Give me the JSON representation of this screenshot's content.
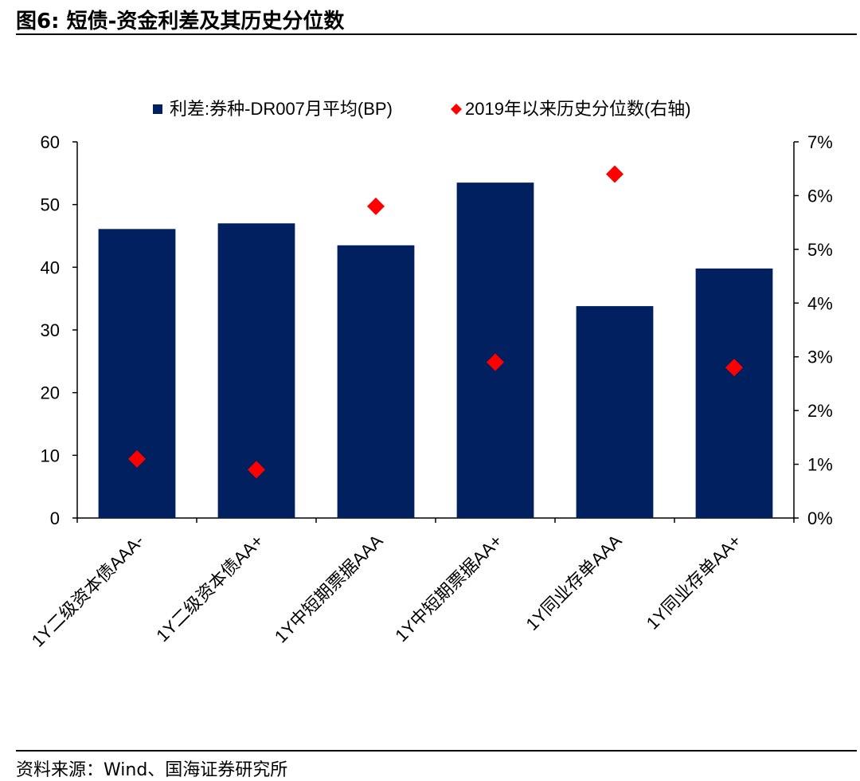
{
  "header": {
    "figure_label": "图6:",
    "title": "短债-资金利差及其历史分位数"
  },
  "footer": {
    "source": "资料来源：Wind、国海证券研究所"
  },
  "chart_data": {
    "type": "bar",
    "categories": [
      "1Y二级资本债AAA-",
      "1Y二级资本债AA+",
      "1Y中短期票据AAA",
      "1Y中短期票据AA+",
      "1Y同业存单AAA",
      "1Y同业存单AA+"
    ],
    "series": [
      {
        "name": "利差:券种-DR007月平均(BP)",
        "type": "bar",
        "axis": "left",
        "color": "#002060",
        "values": [
          46.1,
          47.0,
          43.5,
          53.5,
          33.8,
          39.8
        ]
      },
      {
        "name": "2019年以来历史分位数(右轴)",
        "type": "scatter",
        "marker": "diamond",
        "axis": "right",
        "color": "#ff0000",
        "values": [
          0.011,
          0.009,
          0.058,
          0.029,
          0.064,
          0.028
        ]
      }
    ],
    "yaxis_left": {
      "min": 0,
      "max": 60,
      "ticks": [
        0,
        10,
        20,
        30,
        40,
        50,
        60
      ],
      "tick_labels": [
        "0",
        "10",
        "20",
        "30",
        "40",
        "50",
        "60"
      ]
    },
    "yaxis_right": {
      "min": 0,
      "max": 0.07,
      "ticks": [
        0,
        0.01,
        0.02,
        0.03,
        0.04,
        0.05,
        0.06,
        0.07
      ],
      "tick_labels": [
        "0%",
        "1%",
        "2%",
        "3%",
        "4%",
        "5%",
        "6%",
        "7%"
      ]
    },
    "legend": "top",
    "grid": false,
    "xlabel": "",
    "ylabel": ""
  }
}
